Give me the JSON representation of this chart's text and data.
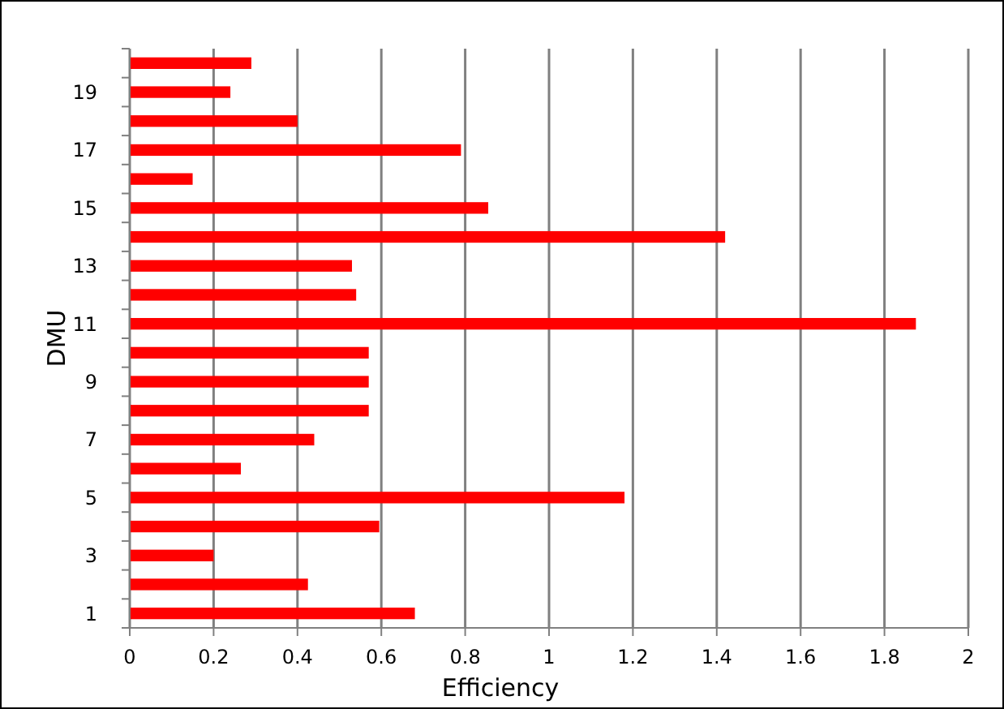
{
  "chart_data": {
    "type": "bar",
    "orientation": "horizontal",
    "xlabel": "Efficiency",
    "ylabel": "DMU",
    "categories": [
      null,
      "19",
      null,
      "17",
      null,
      "15",
      null,
      "13",
      null,
      "11",
      null,
      "9",
      null,
      "7",
      null,
      "5",
      null,
      "3",
      null,
      "1"
    ],
    "values": [
      0.29,
      0.24,
      0.4,
      0.79,
      0.15,
      0.855,
      1.42,
      0.53,
      0.54,
      1.875,
      0.57,
      0.57,
      0.57,
      0.44,
      0.265,
      1.18,
      0.595,
      0.2,
      0.425,
      0.68
    ],
    "color": "#ff0000",
    "xlim": [
      0,
      2
    ],
    "xticks": [
      0,
      0.2,
      0.4,
      0.6,
      0.8,
      1,
      1.2,
      1.4,
      1.6,
      1.8,
      2
    ],
    "grid": "x"
  }
}
